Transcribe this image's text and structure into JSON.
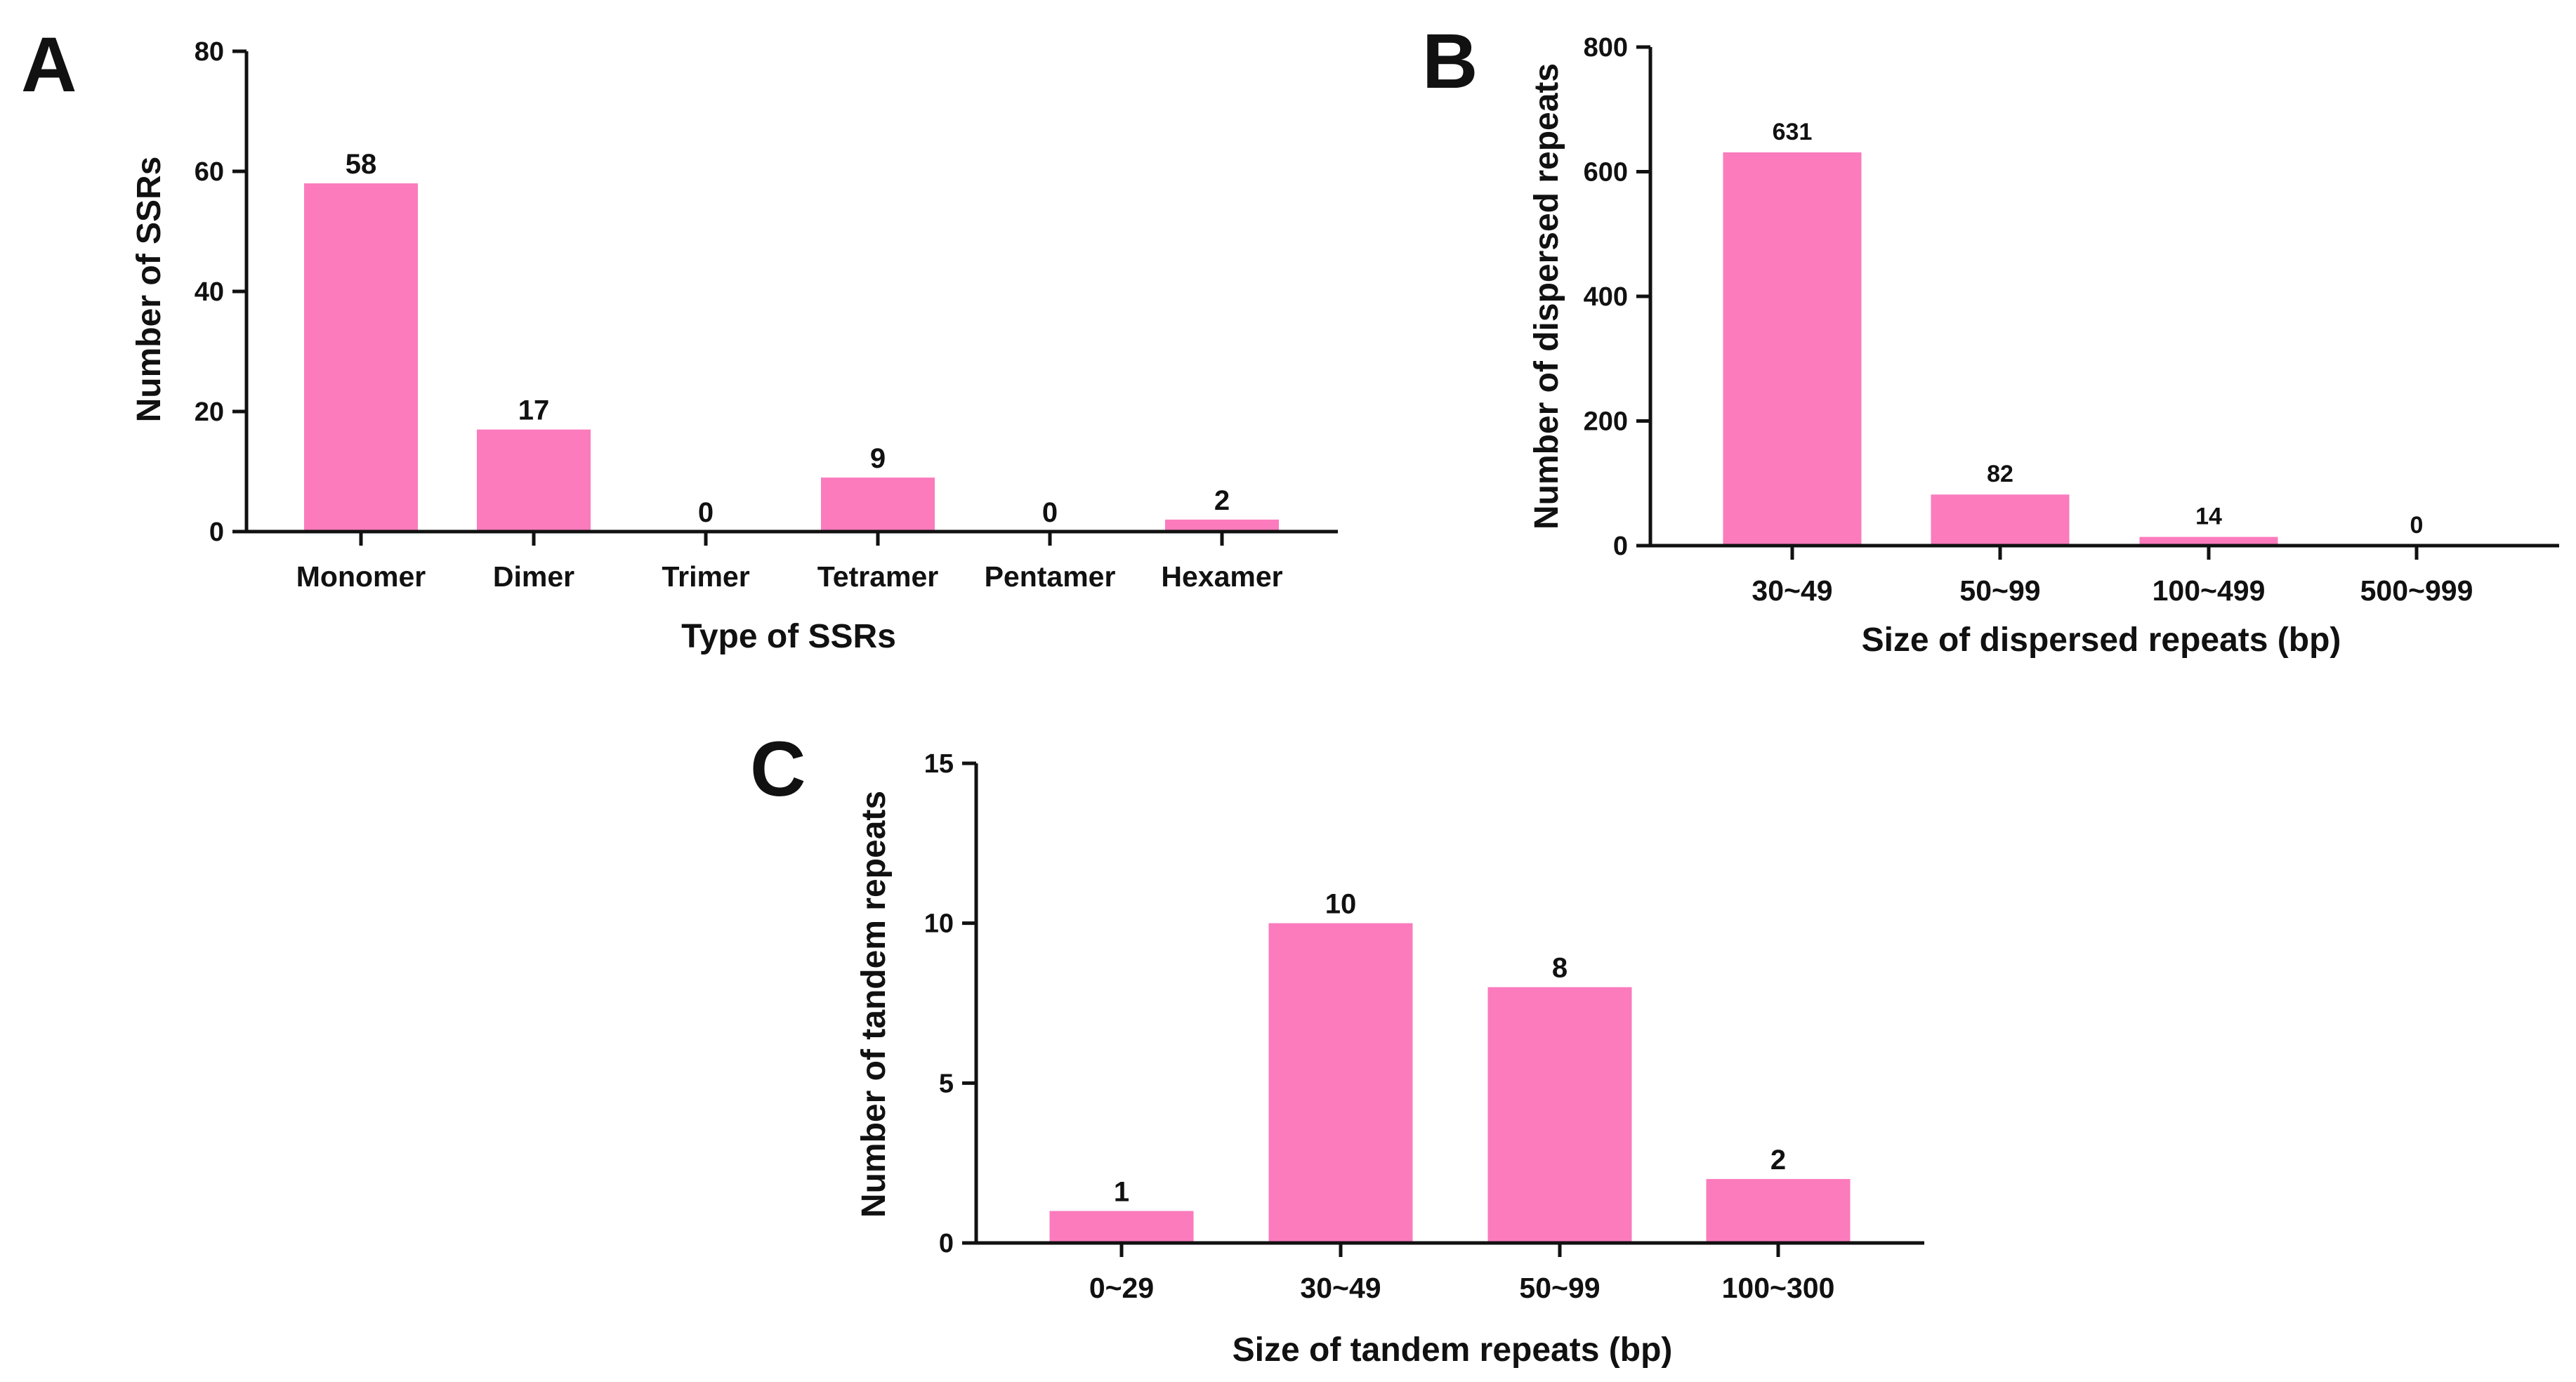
{
  "bar_color": "#fb7bbd",
  "axis_color": "#111111",
  "chart_data": [
    {
      "panel": "A",
      "type": "bar",
      "title": "",
      "xlabel": "Type of SSRs",
      "ylabel": "Number of SSRs",
      "categories": [
        "Monomer",
        "Dimer",
        "Trimer",
        "Tetramer",
        "Pentamer",
        "Hexamer"
      ],
      "values": [
        58,
        17,
        0,
        9,
        0,
        2
      ],
      "data_labels": [
        "58",
        "17",
        "0",
        "9",
        "0",
        "2"
      ],
      "ylim": [
        0,
        80
      ],
      "yticks": [
        0,
        20,
        40,
        60,
        80
      ],
      "ytick_labels": [
        "0",
        "20",
        "40",
        "60",
        "80"
      ],
      "grid": false,
      "legend": "none"
    },
    {
      "panel": "B",
      "type": "bar",
      "title": "",
      "xlabel": "Size of dispersed repeats (bp)",
      "ylabel": "Number of dispersed repeats",
      "categories": [
        "30~49",
        "50~99",
        "100~499",
        "500~999"
      ],
      "values": [
        631,
        82,
        14,
        0
      ],
      "data_labels": [
        "631",
        "82",
        "14",
        "0"
      ],
      "ylim": [
        0,
        800
      ],
      "yticks": [
        0,
        200,
        400,
        600,
        800
      ],
      "ytick_labels": [
        "0",
        "200",
        "400",
        "600",
        "800"
      ],
      "grid": false,
      "legend": "none"
    },
    {
      "panel": "C",
      "type": "bar",
      "title": "",
      "xlabel": "Size of tandem repeats (bp)",
      "ylabel": "Number of tandem repeats",
      "categories": [
        "0~29",
        "30~49",
        "50~99",
        "100~300"
      ],
      "values": [
        1,
        10,
        8,
        2
      ],
      "data_labels": [
        "1",
        "10",
        "8",
        "2"
      ],
      "ylim": [
        0,
        15
      ],
      "yticks": [
        0,
        5,
        10,
        15
      ],
      "ytick_labels": [
        "0",
        "5",
        "10",
        "15"
      ],
      "grid": false,
      "legend": "none"
    }
  ]
}
